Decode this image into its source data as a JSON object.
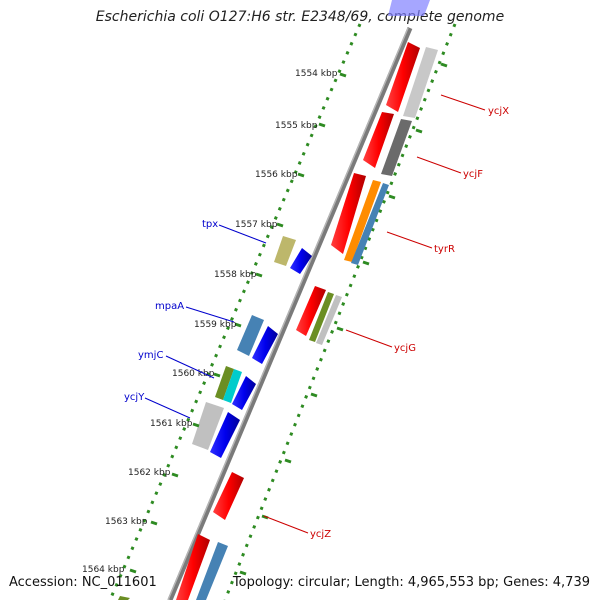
{
  "title": "Escherichia coli O127:H6 str. E2348/69, complete genome",
  "footer": {
    "accession": "Accession: NC_011601",
    "summary": "Topology: circular; Length: 4,965,553 bp; Genes: 4,739"
  },
  "ticks": [
    "1554 kbp",
    "1555 kbp",
    "1556 kbp",
    "1557 kbp",
    "1558 kbp",
    "1559 kbp",
    "1560 kbp",
    "1561 kbp",
    "1562 kbp",
    "1563 kbp",
    "1564 kbp"
  ],
  "gene_labels": {
    "left": [
      "tpx",
      "mpaA",
      "ymjC",
      "ycjY"
    ],
    "right": [
      "ycjX",
      "ycjF",
      "tyrR",
      "ycjG",
      "ycjZ"
    ]
  },
  "colors": {
    "label_left": "#0000cc",
    "label_right": "#cc0000",
    "backbone": "#808080",
    "ticks": "#2e8b22"
  }
}
